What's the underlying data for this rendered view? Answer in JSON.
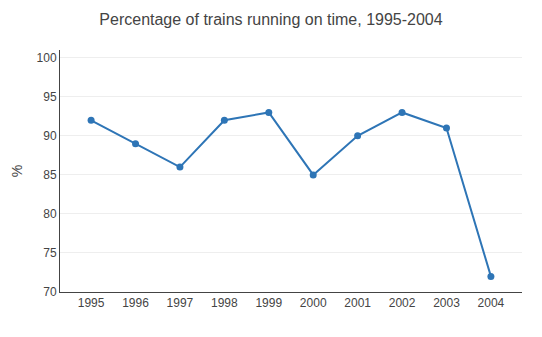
{
  "chart_data": {
    "type": "line",
    "title": "Percentage of trains running on time, 1995-2004",
    "x": [
      1995,
      1996,
      1997,
      1998,
      1999,
      2000,
      2001,
      2002,
      2003,
      2004
    ],
    "values": [
      92,
      89,
      86,
      92,
      93,
      85,
      90,
      93,
      91,
      72
    ],
    "ylabel": "%",
    "color": "#2e75b6",
    "marker": "circle",
    "xlim": [
      1994.3,
      2004.7
    ],
    "xticks": [
      1995,
      1996,
      1997,
      1998,
      1999,
      2000,
      2001,
      2002,
      2003,
      2004
    ],
    "ylim": [
      70,
      101
    ],
    "yticks": [
      70,
      75,
      80,
      85,
      90,
      95,
      100
    ],
    "grid": "y"
  }
}
